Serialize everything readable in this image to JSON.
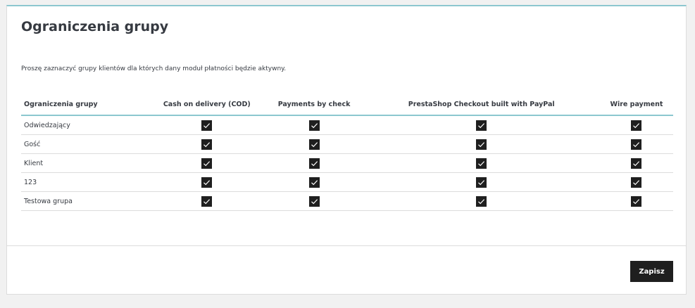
{
  "panel": {
    "title": "Ograniczenia grupy",
    "description": "Proszę zaznaczyć grupy klientów dla których dany moduł płatności będzie aktywny.",
    "save_label": "Zapisz"
  },
  "table": {
    "headers": [
      "Ograniczenia grupy",
      "Cash on delivery (COD)",
      "Payments by check",
      "PrestaShop Checkout built with PayPal",
      "Wire payment"
    ],
    "rows": [
      {
        "group": "Odwiedzający",
        "checked": [
          true,
          true,
          true,
          true
        ]
      },
      {
        "group": "Gość",
        "checked": [
          true,
          true,
          true,
          true
        ]
      },
      {
        "group": "Klient",
        "checked": [
          true,
          true,
          true,
          true
        ]
      },
      {
        "group": "123",
        "checked": [
          true,
          true,
          true,
          true
        ]
      },
      {
        "group": "Testowa grupa",
        "checked": [
          true,
          true,
          true,
          true
        ]
      }
    ]
  }
}
